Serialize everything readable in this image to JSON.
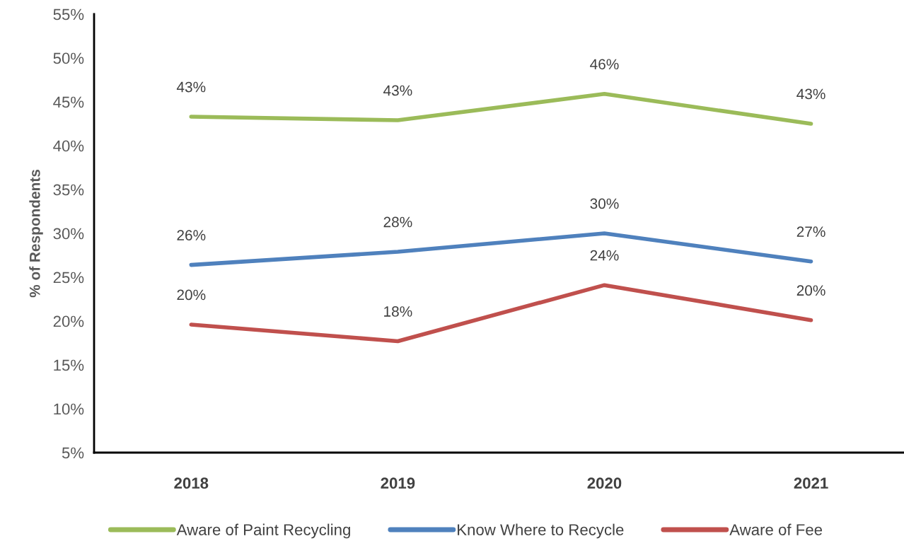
{
  "chart_data": {
    "type": "line",
    "categories": [
      "2018",
      "2019",
      "2020",
      "2021"
    ],
    "ylabel": "% of Respondents",
    "ylim": [
      5,
      55
    ],
    "yticks": [
      {
        "value": 5,
        "label": "5%"
      },
      {
        "value": 10,
        "label": "10%"
      },
      {
        "value": 15,
        "label": "15%"
      },
      {
        "value": 20,
        "label": "20%"
      },
      {
        "value": 25,
        "label": "25%"
      },
      {
        "value": 30,
        "label": "30%"
      },
      {
        "value": 35,
        "label": "35%"
      },
      {
        "value": 40,
        "label": "40%"
      },
      {
        "value": 45,
        "label": "45%"
      },
      {
        "value": 50,
        "label": "50%"
      },
      {
        "value": 55,
        "label": "55%"
      }
    ],
    "series": [
      {
        "name": "Aware of Paint Recycling",
        "color": "#9bbb59",
        "values": [
          43.3,
          42.9,
          45.9,
          42.5
        ],
        "value_labels": [
          "43%",
          "43%",
          "46%",
          "43%"
        ]
      },
      {
        "name": "Know Where to Recycle",
        "color": "#4f81bd",
        "values": [
          26.4,
          27.9,
          30.0,
          26.8
        ],
        "value_labels": [
          "26%",
          "28%",
          "30%",
          "27%"
        ]
      },
      {
        "name": "Aware of Fee",
        "color": "#c0504d",
        "values": [
          19.6,
          17.7,
          24.1,
          20.1
        ],
        "value_labels": [
          "20%",
          "18%",
          "24%",
          "20%"
        ]
      }
    ],
    "grid": false,
    "legend": "bottom",
    "marker": "none",
    "line_style": "solid"
  }
}
